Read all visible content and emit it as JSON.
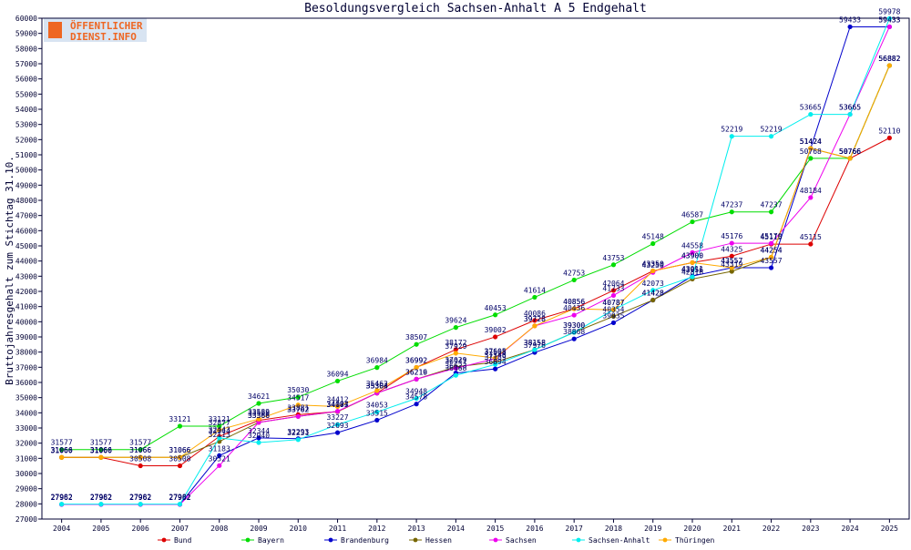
{
  "logo": {
    "line1": "ÖFFENTLICHER",
    "line2": "DIENST.INFO"
  },
  "chart_data": {
    "type": "line",
    "title": "Besoldungsvergleich Sachsen-Anhalt A 5 Endgehalt",
    "xlabel": "",
    "ylabel": "Bruttojahresgehalt zum Stichtag 31.10.",
    "ylim": [
      27000,
      60000
    ],
    "ytick_step": 1000,
    "grid": false,
    "legend_position": "bottom",
    "categories": [
      "2004",
      "2005",
      "2006",
      "2007",
      "2008",
      "2009",
      "2010",
      "2011",
      "2012",
      "2013",
      "2014",
      "2015",
      "2016",
      "2017",
      "2018",
      "2019",
      "2020",
      "2021",
      "2022",
      "2023",
      "2024",
      "2025"
    ],
    "series": [
      {
        "name": "Bund",
        "color": "#dd0000",
        "values": [
          31060,
          31060,
          30508,
          30508,
          32443,
          33500,
          33881,
          34077,
          35303,
          36992,
          38172,
          39002,
          40086,
          40856,
          42064,
          43350,
          43900,
          44325,
          45115,
          45115,
          50766,
          52110
        ]
      },
      {
        "name": "Bayern",
        "color": "#00dd00",
        "values": [
          31577,
          31577,
          31577,
          33121,
          33121,
          34621,
          35030,
          36094,
          36984,
          38507,
          39624,
          40453,
          41614,
          42753,
          43753,
          45148,
          46587,
          47237,
          47237,
          50768,
          50766,
          56882
        ]
      },
      {
        "name": "Brandenburg",
        "color": "#0000cc",
        "values": [
          27962,
          27962,
          27962,
          27962,
          31183,
          32344,
          32293,
          32693,
          33515,
          34578,
          36623,
          36894,
          37976,
          38868,
          39935,
          41428,
          43011,
          43557,
          43557,
          51424,
          59433,
          59433
        ]
      },
      {
        "name": "Hessen",
        "color": "#776600",
        "values": [
          31066,
          31066,
          31066,
          31066,
          32113,
          33366,
          33762,
          34083,
          35304,
          36219,
          37029,
          37340,
          38158,
          39300,
          40354,
          41428,
          42816,
          43319,
          44254,
          51424,
          50766,
          56882
        ]
      },
      {
        "name": "Sachsen",
        "color": "#ee00ee",
        "values": [
          27962,
          27962,
          27962,
          27962,
          30521,
          33366,
          33762,
          34104,
          35304,
          36216,
          36941,
          37568,
          39728,
          40436,
          41733,
          43250,
          44558,
          45176,
          45170,
          48184,
          53665,
          59433
        ]
      },
      {
        "name": "Sachsen-Anhalt",
        "color": "#00eeee",
        "values": [
          27982,
          27982,
          27982,
          27982,
          32344,
          32040,
          32231,
          33227,
          34053,
          34948,
          36468,
          37189,
          38158,
          39300,
          40787,
          42073,
          42956,
          52219,
          52219,
          53665,
          53665,
          59978
        ]
      },
      {
        "name": "Thüringen",
        "color": "#ffaa00",
        "values": [
          31066,
          31066,
          31066,
          31066,
          32877,
          33589,
          34517,
          34412,
          35462,
          36992,
          37929,
          37605,
          39728,
          40856,
          40787,
          43350,
          43900,
          43557,
          44254,
          51424,
          50766,
          56882
        ]
      }
    ]
  }
}
